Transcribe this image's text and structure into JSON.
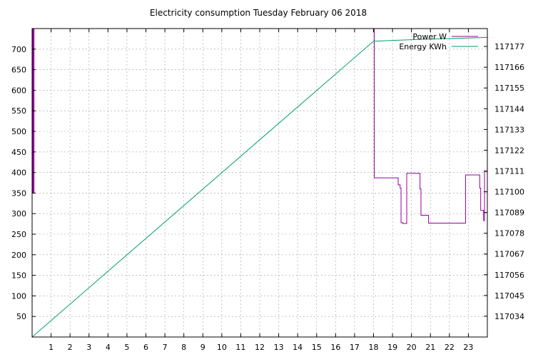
{
  "chart_data": {
    "type": "line",
    "title": "Electricity consumption Tuesday February 06 2018",
    "grid": true,
    "legend_position": "top-right",
    "x_axis": {
      "range": [
        0,
        24
      ],
      "ticks": [
        1,
        2,
        3,
        4,
        5,
        6,
        7,
        8,
        9,
        10,
        11,
        12,
        13,
        14,
        15,
        16,
        17,
        18,
        19,
        20,
        21,
        22,
        23
      ],
      "tick_labels": [
        "1",
        "2",
        "3",
        "4",
        "5",
        "6",
        "7",
        "8",
        "9",
        "10",
        "11",
        "12",
        "13",
        "14",
        "15",
        "16",
        "17",
        "18",
        "19",
        "20",
        "21",
        "22",
        "23"
      ]
    },
    "y_axis_left": {
      "range": [
        0,
        750
      ],
      "ticks": [
        50,
        100,
        150,
        200,
        250,
        300,
        350,
        400,
        450,
        500,
        550,
        600,
        650,
        700
      ],
      "tick_labels": [
        "50",
        "100",
        "150",
        "200",
        "250",
        "300",
        "350",
        "400",
        "450",
        "500",
        "550",
        "600",
        "650",
        "700"
      ]
    },
    "y_axis_right": {
      "range": [
        117023,
        117186.5
      ],
      "ticks": [
        117034,
        117045,
        117056,
        117067,
        117078,
        117089,
        117100,
        117111,
        117122,
        117133,
        117144,
        117155,
        117166,
        117177
      ],
      "tick_labels": [
        "117034",
        "117045",
        "117056",
        "117067",
        "117078",
        "117089",
        "117100",
        "117111",
        "117122",
        "117133",
        "117144",
        "117155",
        "117166",
        "117177"
      ]
    },
    "series": [
      {
        "name": "Power W",
        "color": "#94009a",
        "axis": "left",
        "step": true,
        "x": [
          0,
          0.03,
          0.05,
          0.08,
          0.1,
          18.0,
          18.04,
          19.25,
          19.3,
          19.4,
          19.45,
          19.5,
          19.55,
          19.75,
          19.8,
          20.4,
          20.45,
          20.5,
          20.55,
          20.8,
          20.9,
          21.0,
          22.8,
          22.85,
          23.5,
          23.6,
          23.65,
          23.75,
          23.8,
          23.85,
          24.0
        ],
        "values": [
          750,
          350,
          750,
          350,
          750,
          750,
          387,
          387,
          370,
          362,
          278,
          278,
          276,
          398,
          398,
          398,
          360,
          296,
          296,
          296,
          277,
          277,
          277,
          394,
          394,
          362,
          308,
          308,
          283,
          403,
          403
        ]
      },
      {
        "name": "Energy KWh",
        "color": "#009e73",
        "axis": "right",
        "step": false,
        "x": [
          0,
          18.0,
          19.0,
          20.0,
          21.0,
          22.0,
          23.0,
          24.0
        ],
        "values": [
          117023,
          117179.8,
          117180.2,
          117180.6,
          117180.9,
          117181.2,
          117181.5,
          117181.8
        ]
      }
    ]
  }
}
